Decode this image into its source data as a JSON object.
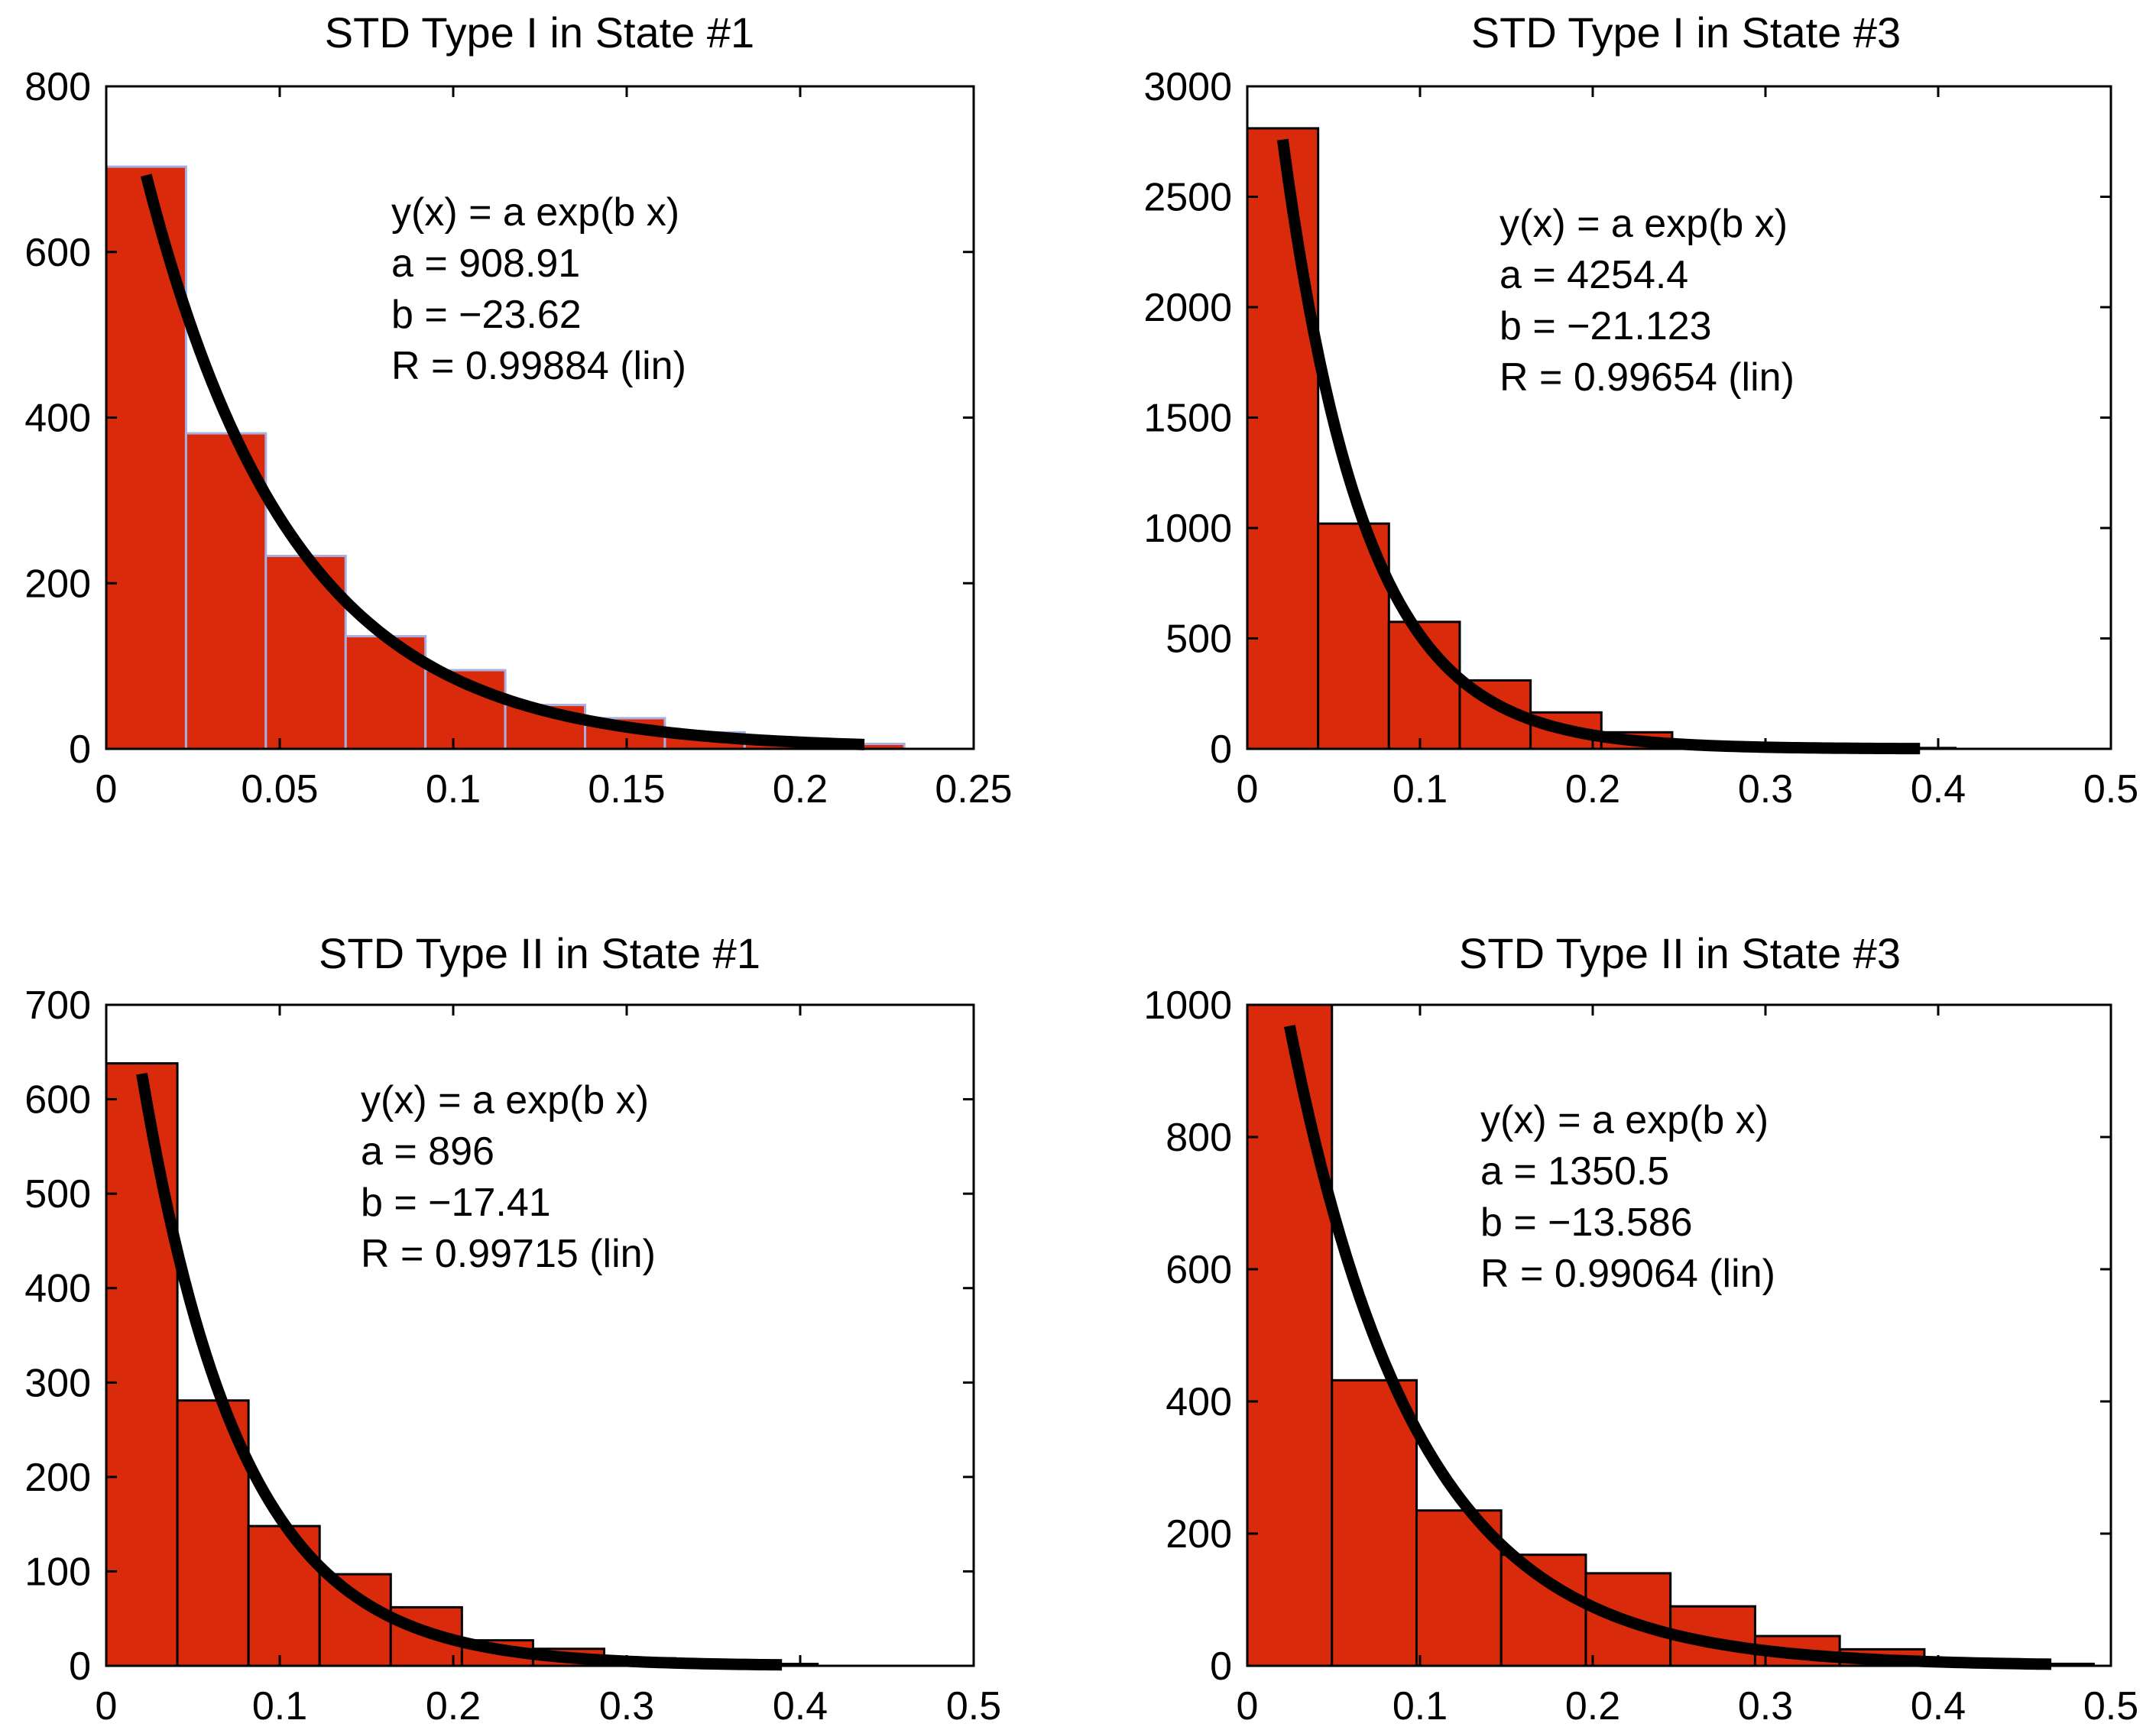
{
  "figure": {
    "fit_model": "y(x) = a exp(b x)",
    "bar_color": "#d92a0b",
    "bar_edge_colors": [
      "#a9aee0",
      "#000000",
      "#000000",
      "#000000"
    ],
    "curve_color": "#000000"
  },
  "chart_data": [
    {
      "type": "bar",
      "title": "STD Type I in State #1",
      "xlabel": "",
      "ylabel": "",
      "xlim": [
        0,
        0.25
      ],
      "ylim": [
        0,
        800
      ],
      "xticks": [
        0,
        0.05,
        0.1,
        0.15,
        0.2,
        0.25
      ],
      "xtick_labels": [
        "0",
        "0.05",
        "0.1",
        "0.15",
        "0.2",
        "0.25"
      ],
      "yticks": [
        0,
        200,
        400,
        600,
        800
      ],
      "ytick_labels": [
        "0",
        "200",
        "400",
        "600",
        "800"
      ],
      "bin_edges": [
        0,
        0.023,
        0.046,
        0.069,
        0.092,
        0.115,
        0.138,
        0.161,
        0.184,
        0.207,
        0.23
      ],
      "values": [
        703,
        381,
        233,
        136,
        95,
        53,
        37,
        20,
        12,
        6
      ],
      "fit": {
        "equation": "y(x) = a exp(b x)",
        "a_label": "a = 908.91",
        "b_label": "b = −23.62",
        "r_label": "R = 0.99884  (lin)",
        "a": 908.91,
        "b": -23.62,
        "x_range": [
          0.0115,
          0.2185
        ]
      }
    },
    {
      "type": "bar",
      "title": "STD Type I in State #3",
      "xlabel": "",
      "ylabel": "",
      "xlim": [
        0,
        0.5
      ],
      "ylim": [
        0,
        3000
      ],
      "xticks": [
        0,
        0.1,
        0.2,
        0.3,
        0.4,
        0.5
      ],
      "xtick_labels": [
        "0",
        "0.1",
        "0.2",
        "0.3",
        "0.4",
        "0.5"
      ],
      "yticks": [
        0,
        500,
        1000,
        1500,
        2000,
        2500,
        3000
      ],
      "ytick_labels": [
        "0",
        "500",
        "1000",
        "1500",
        "2000",
        "2500",
        "3000"
      ],
      "bin_edges": [
        0,
        0.041,
        0.082,
        0.123,
        0.164,
        0.205,
        0.246,
        0.287,
        0.328,
        0.369,
        0.41
      ],
      "values": [
        2810,
        1020,
        575,
        310,
        165,
        75,
        30,
        15,
        8,
        4
      ],
      "fit": {
        "equation": "y(x) = a exp(b x)",
        "a_label": "a = 4254.4",
        "b_label": "b = −21.123",
        "r_label": "R = 0.99654  (lin)",
        "a": 4254.4,
        "b": -21.123,
        "x_range": [
          0.0205,
          0.3895
        ]
      }
    },
    {
      "type": "bar",
      "title": "STD Type II in State #1",
      "xlabel": "",
      "ylabel": "",
      "xlim": [
        0,
        0.5
      ],
      "ylim": [
        0,
        700
      ],
      "xticks": [
        0,
        0.1,
        0.2,
        0.3,
        0.4,
        0.5
      ],
      "xtick_labels": [
        "0",
        "0.1",
        "0.2",
        "0.3",
        "0.4",
        "0.5"
      ],
      "yticks": [
        0,
        100,
        200,
        300,
        400,
        500,
        600,
        700
      ],
      "ytick_labels": [
        "0",
        "100",
        "200",
        "300",
        "400",
        "500",
        "600",
        "700"
      ],
      "bin_edges": [
        0,
        0.041,
        0.082,
        0.123,
        0.164,
        0.205,
        0.246,
        0.287,
        0.328,
        0.369,
        0.41
      ],
      "values": [
        638,
        281,
        148,
        97,
        62,
        27,
        18,
        8,
        5,
        2
      ],
      "fit": {
        "equation": "y(x) = a exp(b x)",
        "a_label": "a = 896",
        "b_label": "b = −17.41",
        "r_label": "R = 0.99715  (lin)",
        "a": 896,
        "b": -17.41,
        "x_range": [
          0.0205,
          0.3895
        ]
      }
    },
    {
      "type": "bar",
      "title": "STD Type II in State #3",
      "xlabel": "",
      "ylabel": "",
      "xlim": [
        0,
        0.5
      ],
      "ylim": [
        0,
        1000
      ],
      "xticks": [
        0,
        0.1,
        0.2,
        0.3,
        0.4,
        0.5
      ],
      "xtick_labels": [
        "0",
        "0.1",
        "0.2",
        "0.3",
        "0.4",
        "0.5"
      ],
      "yticks": [
        0,
        200,
        400,
        600,
        800,
        1000
      ],
      "ytick_labels": [
        "0",
        "200",
        "400",
        "600",
        "800",
        "1000"
      ],
      "bin_edges": [
        0,
        0.049,
        0.098,
        0.147,
        0.196,
        0.245,
        0.294,
        0.343,
        0.392,
        0.441,
        0.49
      ],
      "values": [
        1000,
        432,
        235,
        168,
        140,
        90,
        45,
        25,
        10,
        3
      ],
      "fit": {
        "equation": "y(x) = a exp(b x)",
        "a_label": "a = 1350.5",
        "b_label": "b = −13.586",
        "r_label": "R = 0.99064  (lin)",
        "a": 1350.5,
        "b": -13.586,
        "x_range": [
          0.0245,
          0.4655
        ]
      }
    }
  ]
}
